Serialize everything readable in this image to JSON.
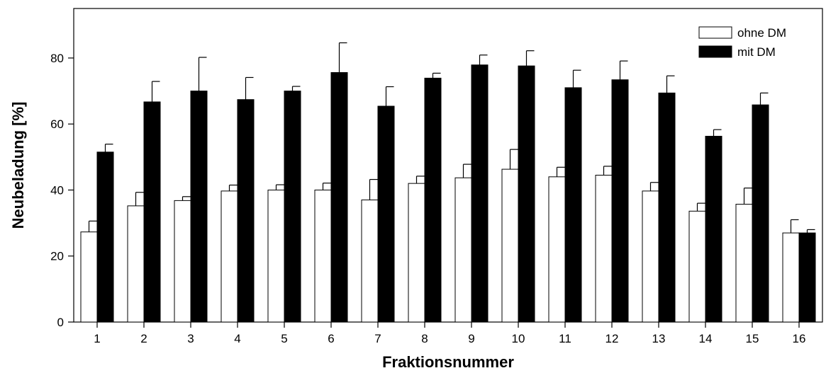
{
  "chart_data": {
    "type": "bar",
    "title": "",
    "xlabel": "Fraktionsnummer",
    "ylabel": "Neubeladung [%]",
    "categories": [
      "1",
      "2",
      "3",
      "4",
      "5",
      "6",
      "7",
      "8",
      "9",
      "10",
      "11",
      "12",
      "13",
      "14",
      "15",
      "16"
    ],
    "ylim": [
      0,
      95
    ],
    "yticks": [
      0,
      20,
      40,
      60,
      80
    ],
    "grid": false,
    "legend": "top-right",
    "series": [
      {
        "name": "ohne DM",
        "color": "#ffffff",
        "values": [
          27.3,
          35.2,
          36.8,
          39.7,
          40.0,
          40.0,
          37.0,
          42.0,
          43.7,
          46.3,
          44.0,
          44.5,
          39.7,
          33.6,
          35.7,
          27.0
        ],
        "errors": [
          3.3,
          4.1,
          1.2,
          1.8,
          1.6,
          2.1,
          6.2,
          2.2,
          4.1,
          6.0,
          2.9,
          2.7,
          2.6,
          2.4,
          4.9,
          4.0
        ]
      },
      {
        "name": "mit DM",
        "color": "#000000",
        "values": [
          51.5,
          66.7,
          70.0,
          67.4,
          70.0,
          75.6,
          65.4,
          73.9,
          77.9,
          77.6,
          71.0,
          73.4,
          69.4,
          56.3,
          65.8,
          27.0
        ],
        "errors": [
          2.4,
          6.2,
          10.2,
          6.7,
          1.4,
          9.0,
          5.9,
          1.5,
          3.0,
          4.6,
          5.3,
          5.7,
          5.2,
          2.0,
          3.6,
          1.0
        ]
      }
    ]
  }
}
